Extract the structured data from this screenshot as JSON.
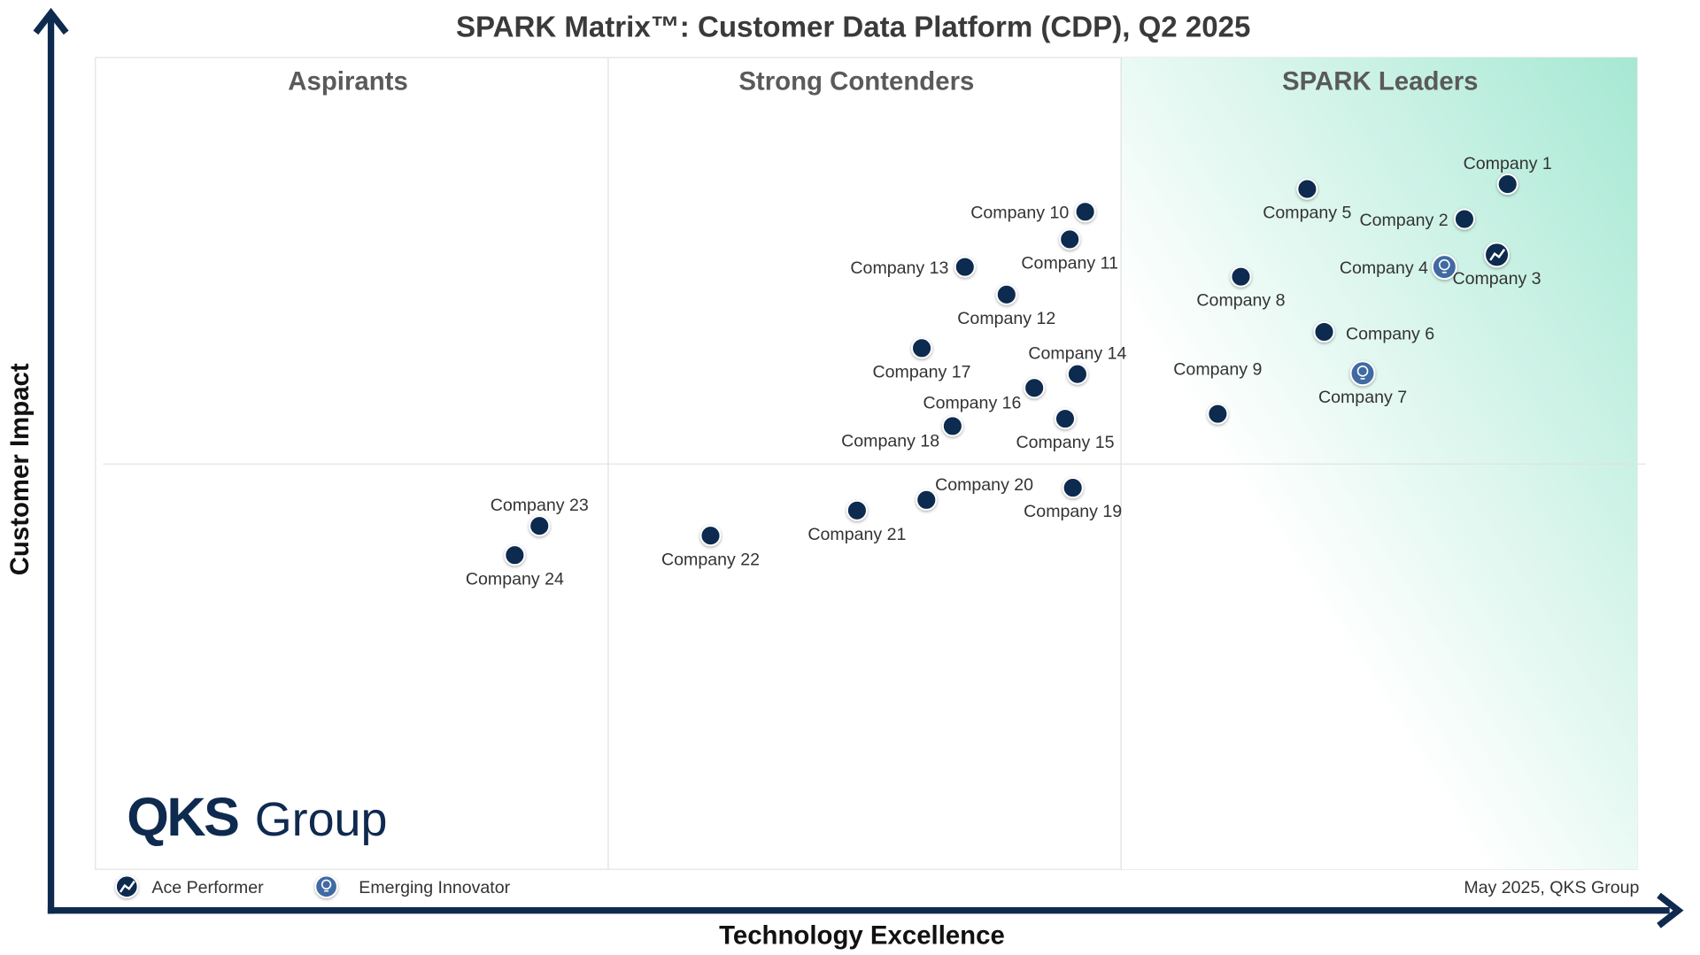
{
  "chart_data": {
    "type": "scatter",
    "title": "SPARK Matrix™: Customer Data Platform (CDP), Q2 2025",
    "xlabel": "Technology Excellence",
    "ylabel": "Customer Impact",
    "xlim": [
      0,
      100
    ],
    "ylim": [
      0,
      100
    ],
    "grid": false,
    "quadrants": [
      "Aspirants",
      "Strong Contenders",
      "SPARK Leaders"
    ],
    "legend": {
      "placement": "bottom-left",
      "items": [
        {
          "label": "Ace Performer",
          "icon": "trend-up-icon"
        },
        {
          "label": "Emerging Innovator",
          "icon": "lightbulb-icon"
        }
      ]
    },
    "footer": "May 2025, QKS Group",
    "logo": "QKS Group",
    "colors": {
      "dot": "#0f2a4f",
      "emerging": "#3f6aa3",
      "axis": "#0f2a4f",
      "leaders_gradient": "#a6e8d3"
    },
    "points": [
      {
        "name": "Company 1",
        "x": 91.6,
        "y": 84.4,
        "label": "above",
        "type": "normal"
      },
      {
        "name": "Company 2",
        "x": 88.8,
        "y": 80.1,
        "label": "left",
        "type": "normal"
      },
      {
        "name": "Company 3",
        "x": 90.9,
        "y": 75.7,
        "label": "below",
        "type": "ace"
      },
      {
        "name": "Company 4",
        "x": 87.5,
        "y": 74.2,
        "label": "left",
        "type": "emerging"
      },
      {
        "name": "Company 5",
        "x": 78.6,
        "y": 83.8,
        "label": "below",
        "type": "normal"
      },
      {
        "name": "Company 6",
        "x": 79.7,
        "y": 66.2,
        "label": "right",
        "type": "normal"
      },
      {
        "name": "Company 7",
        "x": 82.2,
        "y": 61.1,
        "label": "below",
        "type": "emerging"
      },
      {
        "name": "Company 8",
        "x": 74.3,
        "y": 73.0,
        "label": "below",
        "type": "normal"
      },
      {
        "name": "Company 9",
        "x": 72.8,
        "y": 56.1,
        "label": "above-far",
        "type": "normal"
      },
      {
        "name": "Company 10",
        "x": 64.2,
        "y": 81.0,
        "label": "left",
        "type": "normal"
      },
      {
        "name": "Company 11",
        "x": 63.2,
        "y": 77.6,
        "label": "below",
        "type": "normal"
      },
      {
        "name": "Company 12",
        "x": 59.1,
        "y": 70.8,
        "label": "below",
        "type": "normal"
      },
      {
        "name": "Company 13",
        "x": 56.4,
        "y": 74.2,
        "label": "left",
        "type": "normal"
      },
      {
        "name": "Company 14",
        "x": 63.7,
        "y": 61.0,
        "label": "above",
        "type": "normal"
      },
      {
        "name": "Company 15",
        "x": 62.9,
        "y": 55.5,
        "label": "below",
        "type": "normal"
      },
      {
        "name": "Company 16",
        "x": 60.9,
        "y": 59.3,
        "label": "below-left",
        "type": "normal"
      },
      {
        "name": "Company 17",
        "x": 53.6,
        "y": 64.2,
        "label": "below",
        "type": "normal"
      },
      {
        "name": "Company 18",
        "x": 55.6,
        "y": 54.6,
        "label": "below-left",
        "type": "normal"
      },
      {
        "name": "Company 19",
        "x": 63.4,
        "y": 47.0,
        "label": "below",
        "type": "normal"
      },
      {
        "name": "Company 20",
        "x": 53.9,
        "y": 45.5,
        "label": "above-right",
        "type": "normal"
      },
      {
        "name": "Company 21",
        "x": 49.4,
        "y": 44.2,
        "label": "below",
        "type": "normal"
      },
      {
        "name": "Company 22",
        "x": 39.9,
        "y": 41.1,
        "label": "below",
        "type": "normal"
      },
      {
        "name": "Company 23",
        "x": 28.8,
        "y": 42.3,
        "label": "above",
        "type": "normal"
      },
      {
        "name": "Company 24",
        "x": 27.2,
        "y": 38.7,
        "label": "below",
        "type": "normal"
      }
    ]
  }
}
